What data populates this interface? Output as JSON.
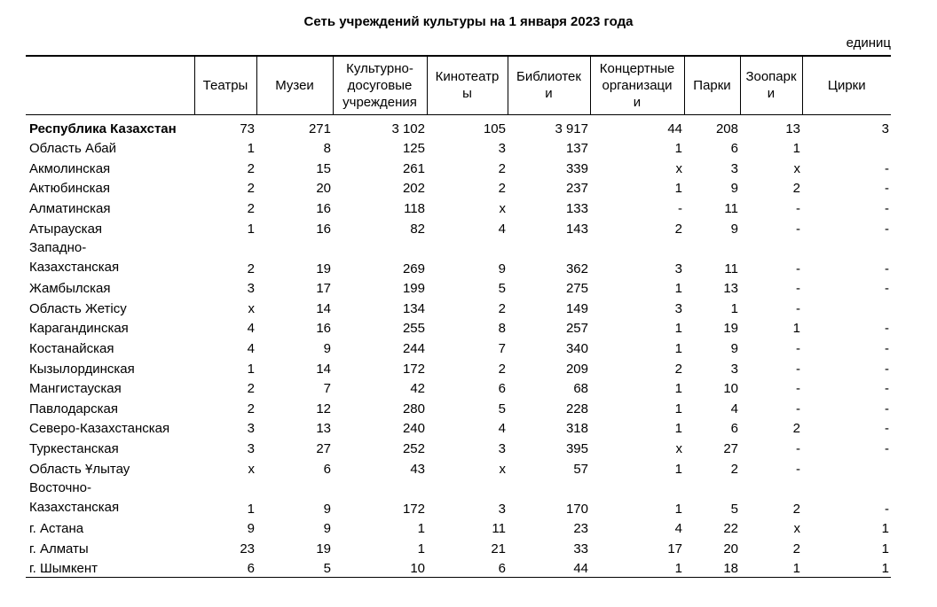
{
  "title": "Сеть учреждений культуры на 1 января 2023 года",
  "units": "единиц",
  "columns": [
    "",
    "Театры",
    "Музеи",
    "Культурно-досуговые учреждения",
    "Кинотеатры",
    "Библиотеки",
    "Концертные организации",
    "Парки",
    "Зоопарки",
    "Цирки"
  ],
  "column_lines": [
    [
      ""
    ],
    [
      "Театры"
    ],
    [
      "Музеи"
    ],
    [
      "Культурно-",
      "досуговые",
      "учреждения"
    ],
    [
      "Кинотеатр",
      "ы"
    ],
    [
      "Библиотек",
      "и"
    ],
    [
      "Концертные",
      "организаци",
      "и"
    ],
    [
      "Парки"
    ],
    [
      "Зоопарк",
      "и"
    ],
    [
      "Цирки"
    ]
  ],
  "rows": [
    {
      "name": "Республика Казахстан",
      "values": [
        "73",
        "271",
        "3 102",
        "105",
        "3 917",
        "44",
        "208",
        "13",
        "3"
      ]
    },
    {
      "name": "Область Абай",
      "values": [
        "1",
        "8",
        "125",
        "3",
        "137",
        "1",
        "6",
        "1",
        ""
      ]
    },
    {
      "name": "Акмолинская",
      "values": [
        "2",
        "15",
        "261",
        "2",
        "339",
        "x",
        "3",
        "x",
        "-"
      ]
    },
    {
      "name": "Актюбинская",
      "values": [
        "2",
        "20",
        "202",
        "2",
        "237",
        "1",
        "9",
        "2",
        "-"
      ]
    },
    {
      "name": "Алматинская",
      "values": [
        "2",
        "16",
        "118",
        "x",
        "133",
        "-",
        "11",
        "-",
        "-"
      ]
    },
    {
      "name": "Атырауская",
      "values": [
        "1",
        "16",
        "82",
        "4",
        "143",
        "2",
        "9",
        "-",
        "-"
      ]
    },
    {
      "name": "Западно-Казахстанская",
      "name_lines": [
        "Западно-",
        "Казахстанская"
      ],
      "values": [
        "2",
        "19",
        "269",
        "9",
        "362",
        "3",
        "11",
        "-",
        "-"
      ]
    },
    {
      "name": "Жамбылская",
      "values": [
        "3",
        "17",
        "199",
        "5",
        "275",
        "1",
        "13",
        "-",
        "-"
      ]
    },
    {
      "name": "Область Жетісу",
      "values": [
        "x",
        "14",
        "134",
        "2",
        "149",
        "3",
        "1",
        "-",
        ""
      ]
    },
    {
      "name": "Карагандинская",
      "values": [
        "4",
        "16",
        "255",
        "8",
        "257",
        "1",
        "19",
        "1",
        "-"
      ]
    },
    {
      "name": "Костанайская",
      "values": [
        "4",
        "9",
        "244",
        "7",
        "340",
        "1",
        "9",
        "-",
        "-"
      ]
    },
    {
      "name": "Кызылординская",
      "values": [
        "1",
        "14",
        "172",
        "2",
        "209",
        "2",
        "3",
        "-",
        "-"
      ]
    },
    {
      "name": "Мангистауская",
      "values": [
        "2",
        "7",
        "42",
        "6",
        "68",
        "1",
        "10",
        "-",
        "-"
      ]
    },
    {
      "name": "Павлодарская",
      "values": [
        "2",
        "12",
        "280",
        "5",
        "228",
        "1",
        "4",
        "-",
        "-"
      ]
    },
    {
      "name": "Северо-Казахстанская",
      "values": [
        "3",
        "13",
        "240",
        "4",
        "318",
        "1",
        "6",
        "2",
        "-"
      ]
    },
    {
      "name": "Туркестанская",
      "values": [
        "3",
        "27",
        "252",
        "3",
        "395",
        "x",
        "27",
        "-",
        "-"
      ]
    },
    {
      "name": "Область Ұлытау",
      "values": [
        "x",
        "6",
        "43",
        "x",
        "57",
        "1",
        "2",
        "-",
        ""
      ]
    },
    {
      "name": "Восточно-Казахстанская",
      "name_lines": [
        "Восточно-",
        "Казахстанская"
      ],
      "values": [
        "1",
        "9",
        "172",
        "3",
        "170",
        "1",
        "5",
        "2",
        "-"
      ]
    },
    {
      "name": "г. Астана",
      "values": [
        "9",
        "9",
        "1",
        "11",
        "23",
        "4",
        "22",
        "x",
        "1"
      ]
    },
    {
      "name": "г. Алматы",
      "values": [
        "23",
        "19",
        "1",
        "21",
        "33",
        "17",
        "20",
        "2",
        "1"
      ]
    },
    {
      "name": "г. Шымкент",
      "values": [
        "6",
        "5",
        "10",
        "6",
        "44",
        "1",
        "18",
        "1",
        "1"
      ]
    }
  ]
}
